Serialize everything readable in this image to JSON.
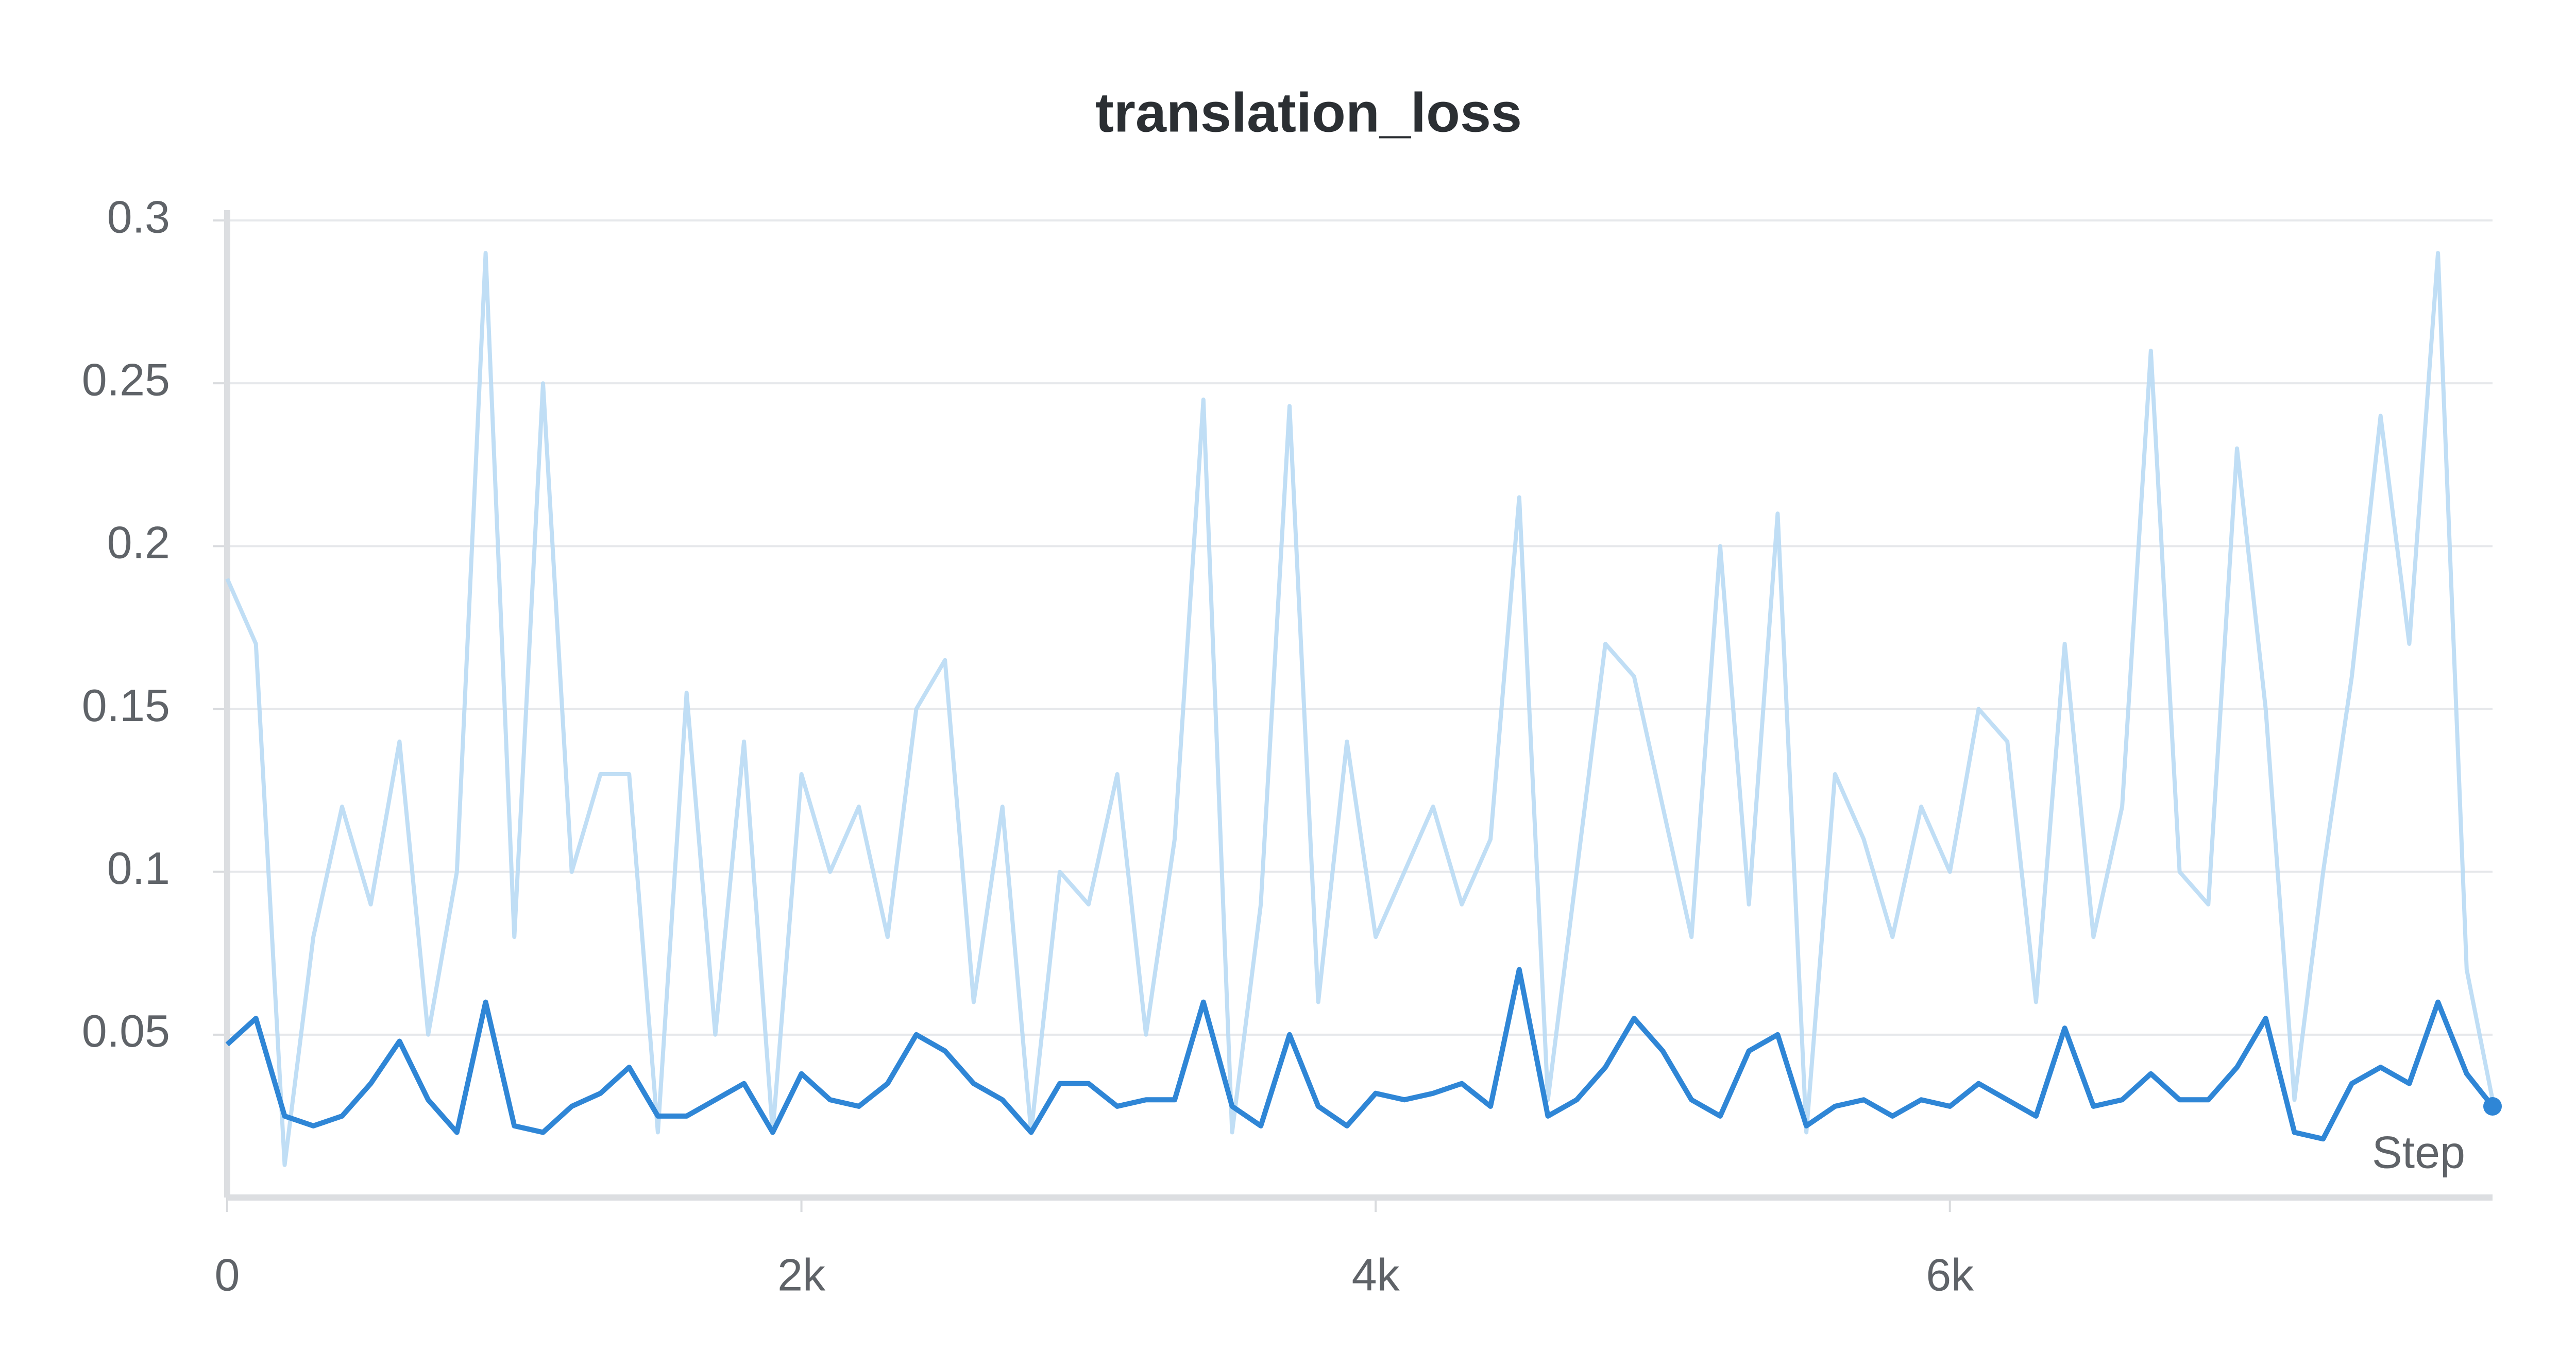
{
  "chart_data": {
    "type": "line",
    "title": "translation_loss",
    "x_label": "Step",
    "x": [
      0,
      100,
      200,
      300,
      400,
      500,
      600,
      700,
      800,
      900,
      1000,
      1100,
      1200,
      1300,
      1400,
      1500,
      1600,
      1700,
      1800,
      1900,
      2000,
      2100,
      2200,
      2300,
      2400,
      2500,
      2600,
      2700,
      2800,
      2900,
      3000,
      3100,
      3200,
      3300,
      3400,
      3500,
      3600,
      3700,
      3800,
      3900,
      4000,
      4100,
      4200,
      4300,
      4400,
      4500,
      4600,
      4700,
      4800,
      4900,
      5000,
      5100,
      5200,
      5300,
      5400,
      5500,
      5600,
      5700,
      5800,
      5900,
      6000,
      6100,
      6200,
      6300,
      6400,
      6500,
      6600,
      6700,
      6800,
      6900,
      7000,
      7100,
      7200,
      7300,
      7400,
      7500,
      7600,
      7700,
      7800,
      7890
    ],
    "series": [
      {
        "color": "#b9daf4",
        "values": [
          0.19,
          0.17,
          0.01,
          0.08,
          0.12,
          0.09,
          0.14,
          0.05,
          0.1,
          0.29,
          0.08,
          0.25,
          0.1,
          0.13,
          0.13,
          0.02,
          0.155,
          0.05,
          0.14,
          0.02,
          0.13,
          0.1,
          0.12,
          0.08,
          0.15,
          0.165,
          0.06,
          0.12,
          0.02,
          0.1,
          0.09,
          0.13,
          0.05,
          0.11,
          0.245,
          0.02,
          0.09,
          0.243,
          0.06,
          0.14,
          0.08,
          0.1,
          0.12,
          0.09,
          0.11,
          0.215,
          0.03,
          0.1,
          0.17,
          0.16,
          0.12,
          0.08,
          0.2,
          0.09,
          0.21,
          0.02,
          0.13,
          0.11,
          0.08,
          0.12,
          0.1,
          0.15,
          0.14,
          0.06,
          0.17,
          0.08,
          0.12,
          0.26,
          0.1,
          0.09,
          0.23,
          0.15,
          0.03,
          0.1,
          0.16,
          0.24,
          0.17,
          0.29,
          0.07,
          0.03
        ]
      },
      {
        "color": "#2f86d6",
        "values": [
          0.047,
          0.055,
          0.025,
          0.022,
          0.025,
          0.035,
          0.048,
          0.03,
          0.02,
          0.06,
          0.022,
          0.02,
          0.028,
          0.032,
          0.04,
          0.025,
          0.025,
          0.03,
          0.035,
          0.02,
          0.038,
          0.03,
          0.028,
          0.035,
          0.05,
          0.045,
          0.035,
          0.03,
          0.02,
          0.035,
          0.035,
          0.028,
          0.03,
          0.03,
          0.06,
          0.028,
          0.022,
          0.05,
          0.028,
          0.022,
          0.032,
          0.03,
          0.032,
          0.035,
          0.028,
          0.07,
          0.025,
          0.03,
          0.04,
          0.055,
          0.045,
          0.03,
          0.025,
          0.045,
          0.05,
          0.022,
          0.028,
          0.03,
          0.025,
          0.03,
          0.028,
          0.035,
          0.03,
          0.025,
          0.052,
          0.028,
          0.03,
          0.038,
          0.03,
          0.03,
          0.04,
          0.055,
          0.02,
          0.018,
          0.035,
          0.04,
          0.035,
          0.06,
          0.038,
          0.028
        ]
      }
    ],
    "xlim": [
      0,
      7890
    ],
    "ylim": [
      0,
      0.3
    ],
    "xticks": [
      0,
      {
        "value": 2000,
        "label": "2k"
      },
      {
        "value": 4000,
        "label": "4k"
      },
      {
        "value": 6000,
        "label": "6k"
      }
    ],
    "yticks": [
      0.05,
      0.1,
      0.15,
      0.2,
      0.25,
      0.3
    ],
    "grid": true
  }
}
